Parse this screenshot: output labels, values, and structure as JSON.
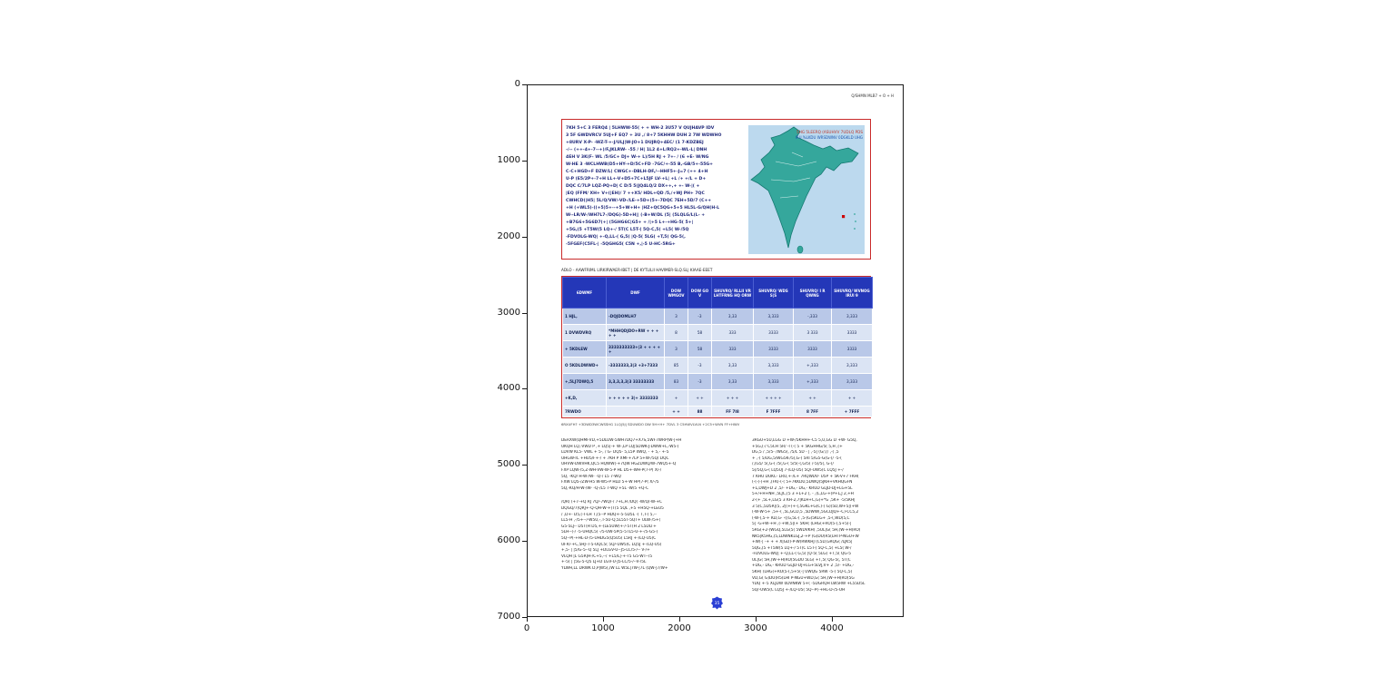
{
  "axes": {
    "x_ticks": [
      "0",
      "1000",
      "2000",
      "3000",
      "4000"
    ],
    "y_ticks": [
      "0",
      "1000",
      "2000",
      "3000",
      "4000",
      "5000",
      "6000",
      "7000"
    ]
  },
  "page": {
    "header_right": "Q/SHMN MLB7 + O + H"
  },
  "intro": {
    "lines": [
      "7KH 5+C 3 FERQ4 | 5LHWW-55( + + WH-2 3U57 V QUJHAVP IDV",
      "3 5F GWDVRCV 5UJ+F EQ7 + 3U ,/ 8+7 5KHHW DUH 2 7W WDWHO",
      "+8URV X-P- -WZ-T-+-J/ULJ|W-JO+1 DUJRQ+4EC/ (1 7-KDZBEJ",
      "-/-- (++-4+-7--+)/F,JKLRW- -55 / H| 1L2 4+L/RQ2+-WL-L| DNH",
      "4EH V 3K(F- WL /5/GC+ DJ+ W-+ L)/5H RJ + 7+- / (6 +E- W/NG",
      "W-HE 3 -WCLHWB(D5+HY-+D/5C+FD -7GC/+-55 B,-GB/5+-55G+",
      "C-C+HGD+F DZW/L( CWGC+-DBLH-DF,/--HHF5+-J=7 (++ 4+H",
      "U-P (E5/2P+-7+H LL+-V+D5+7C+L5JF LV-+L| +L /+ +/L + D+",
      "DQC C/7LP LQZ-PQ+D| C D/5 5(JQ4LQ/2 DX++,+ +- W-|( +",
      "|EQ (FFM/ XH+ V+(|EH)/ 7 ++X5/ HDL+QD /5,/+WJ PH+ 7QC",
      "CWHCD(|H5| 5L/Q/VW/-VD-/LE-+5D+(5+-7DQC 7EH+5D/7 (C++",
      "+H (+WL5)-((+5)5+--+5+W+H+ |HZ+QC5QG+5+5 HL5L-G/QH(H-L",
      "W--LR/W-/WH7L7-/DQG)-5D+H|| (-B+W/DL (5| (5LQLG/L(L- +",
      "+B7G6+5G6D7(+| (5GHG6C|G5+ + /|+5 L+-+HG-5( 5+|",
      "+5G,(5 +T5W(5 LQ+-/ 5T(C L5T-( 5Q-C,5( +L5( W-/5Q",
      "-FDVOLG-WQ| +-Q,LL-( G,5( |Q-5( 5LG( +T,5( QG-5(,",
      "-5FGEF(C5FL-| -5QGHG5( C5N +,|-5 U-HC-5RG+"
    ]
  },
  "map": {
    "label_line1": "5HG 5LEERQ (ASUHVV 7UDLQ PDS",
    "label_line2": "IRU %LKDU WRSDWNV  0DGKLD UHG",
    "sea_color": "#bcd9ee",
    "land_color": "#35a79c",
    "marker_color": "#cc0000"
  },
  "caption": "ADLO - AAWFRIML LIRKIRWAER-IBET | DE KYTLILII HAVIMER-SLQ.SL| KIAAE-EEET",
  "table": {
    "headers": [
      "6DWMF",
      "DWF",
      "DOW WMGOV",
      "DOW GO V",
      "SHUVRQ/ RLLII VR LHTFRNG HQ ORW",
      "SHUVRQ/ WDS S|S",
      "SHUVRQ/ I R QWNG",
      "SHUVRQ/ WVNOG IRUI 9"
    ],
    "rows": [
      {
        "cells": [
          "1 HJL,",
          "-DQJDOMLH7",
          "3",
          "-3",
          "3,33",
          "3,333",
          "-,333",
          "3,333"
        ]
      },
      {
        "cells": [
          "1 DVWDVRQ",
          "*MHHQDJDO+RW + + + + +",
          "8",
          "58",
          "333",
          "3333",
          "3 333",
          "3333"
        ]
      },
      {
        "cells": [
          "+ 5KDLEW",
          "3333333333+|3 + + + + +",
          "3",
          "58",
          "333",
          "3333",
          "3333",
          "3333"
        ]
      },
      {
        "cells": [
          "O 5KDLDWWD+",
          "-3333333,3|3 +3+7333",
          "85",
          "-3",
          "3,33",
          "3,333",
          "+,333",
          "3,333"
        ]
      },
      {
        "cells": [
          "+,5LJ7DWQ,5",
          "3,3,3,3,3|3 33333333",
          "83",
          "-3",
          "3,33",
          "3,333",
          "+,333",
          "3,333"
        ]
      },
      {
        "cells": [
          "+K,D,",
          "+ + + + + 3|+ 3333333",
          "+",
          "+ +",
          "+ + +",
          "+ + + +",
          "+ +",
          "+ +"
        ]
      },
      {
        "cells": [
          "7RWDO",
          "",
          "+ +",
          "88",
          "FF 7I8",
          "F 7FFF",
          "8 7FF",
          "+ 7FFF"
        ],
        "total": true
      }
    ],
    "source": "6RXUFH? +3DWD3WCWSSHG 1LQ|5J| SDUWDO DW 5H+H+ 7DVL 3 C5HWVLVLN +2C5+WVN FF+HWV"
  },
  "body": {
    "left_block1": [
      "DERXW(QHMFVD,+5DLUW-5WH7DQ7+X7S,5WF7WRP(W-|+H",
      "UKQH LQ,-VWD P ,+ LQ5|-+ W-,LP LQ|5DWK-J-DWW+L,-W5-(",
      "LDVW KL5- VWL + 5-, / G- DQ5- 5,L5P 4WQ, - + 5,- +-5",
      "UHGW-IC +HU5/F+-/ + 7KH P XMF+7LP 5+W-/5Q/ DQC",
      "UHVW-DWVHK,QC5 HQWW(-+7QW HGZDWQ/W-7WQ5+-Q",
      "FXP LQW-/5,Z-WH-VW-W-5-P HL D5+-WH-P(7-P( X/-/",
      "5Q, -KQ/ H-W-/W- -Q-/ L5 7-WQ",
      "FXW LQ5-/ZW-H5 W-W5-P HLD 5+-W HP(7-P( X/-/5",
      "5Q,-KQ/H-W-/W- -Q-/L5 7-WQ +5L -W/5 +Q-C"
    ],
    "left_block2": [
      "/QR( (+7-+Q RJ 7Q/-7WQ/-/ 7+L,H /DQ( -W/Q/-W-+C",
      "DQGQ/7(QRJ+-Q-QH-W-+(T(5 5QL ,+5 +H5Q-+LEU5",
      "/ ,D+- D5,(-T-LH T,(5--P HDQ+-5-5D5L -( T,T-( 5,--",
      "LL5-H ,-/5+--/-W5U,-,T-5U-Q,5L55T-5QT+ ULW-/5+(",
      "G5-5LJ-- D5T(H D5,+-(LE5UW(+-/-5T(H 2 L5DLT+",
      "5LH--(-/ -5-UHQC5( -/5-UW-5P(5-5TL5-U-+-/5-G5-(",
      "5Q--P(-+HL-D-/5-UHDG5(Q5U5( L5RJ +-/LQ-U5(C",
      "UFR/-+C,5HJ--/-5-UQC5( 5Q/-UW5(C LQ5J +-/LQ-U5(",
      "+,5- | |5/G-5--Q 5LJ +DLGV-U--J5-LC/5-/-- V-/+",
      "VLQH |L G5R|H-/C+5,--/ +L5/L|-+-T5 G5-WT--/5",
      "+-5( | |5G-5-Q5 LJ+D LGV-U-J5-LC/5-/--V-/5L",
      "YLWH,LL DRWK D,P|W5(,/W LL W5L|7W-|7L (QW-|7/W+"
    ],
    "right": [
      "3RGU+5U,LGG D +W-/5KHH+-C5 5,U,GG D +W- G5Q,",
      "+5G,(-/ C5CH 5R/ -I (-( 5 + 5KGHHG/5( 5,H ,(+",
      "DG,5 / ,5/5- /WG5(, /5/L 5D - | ,-5| (G/,(/ ,-( ,5",
      "+ ,-( 5/DG,5/WG5K-/5(,G-( 5RI 5/G5-G(G-(/ -5-(",
      "/,(G5/ 5(,G-( /5(,G-( 5/5(-(,G/5( /-5(/5(, G-(/",
      "5(/5Q,G-( LQ5UJ 7-/LQ-U5( 5Q/-UW5(C LQ5J +-/",
      "7 KHU DUKC- LRU,+-/L+ 7RQWDV- U5P + 5K-V+7 FKH(",
      "(-(-(-(+H ,(FK(-(-( 5+7KKDU,5DWQ)5JKH+VKHQGFN",
      "+L,DWJ+D 2 ,5/- +DG,- DG,- KRUD GLJD-DJ+LG+5L",
      "5+/+H+NH ,5LJC,(5 3 +L+2 (, - ,(L,LG-+)P+L,J 2,+H",
      "2-(+ ,5L+,LG(5 3 KH-2,7|KLH+C,G)+*G ,5K+ -5/5KH|",
      "3 5(C,5D5R|(5, 2|(+(+-(,5GKL+G(C)-( G)(5D,W+5|(+W",
      "(-W-W-5+ ,5+-( ,5L,GCD,5 ,5DWW(,5GCDJQ+-C)-CC5,2",
      "(-W-(,5-+ KD,G- -((G,5L-( ,5-(G)5KLG+ ,5-(,WD(5,C",
      "5| -G+W-+H ,(-+W,5|(+ 5KH( (LHG(+RO(5-(,5+5(-|",
      "5RG(+2-(WGQ,5LG(5( 5WDVKH( ,5UL|G( 5H,(W-+H(RO(",
      "NK5|K5HG,(5,LDWNKLGJ,2-+P (G)DU(R5(LHI P-NGU+W",
      "+W(-| -+ + + X|GD)-P-W(RWKHJ (C5D,GRQG( /LJK5|",
      "5QG,(5 +T5W(5 LQ+-/ 5T(C L5T-( 5Q-C,5( +L5( W-/",
      "-FDVOLG-WQ| +-Q,LL-( G,5( |Q-5( 5LG( +T,5( QG-5",
      "UL|G( 5H,(W-+H(RO(5GDU 5LG( +T,5( QG-5(, 5T(C",
      "+DG,- DG,- KRUD GLJD-DJ+LG+5LVJ,V+ 2 ,5/- +DG,-",
      "5KH( (LHG(+RO(5-(,5+5(-| UWQG 5RW -5-( 5Q-C,5(",
      "VD,G( G)DU(R5(LHI P-NGU+WD,G( 5H,(W-+H(RO(5G",
      "YDQ +-5 XLJDW 0DVNKW 5+( -5DGRQH LW5RW +L55D5L",
      "5Q/-UW5(C LQ5J +-/LQ-U5( 5Q--P(-+HL-D-/5-UH"
    ]
  },
  "emblem": {
    "text": "35",
    "color": "#2a3fd4"
  }
}
